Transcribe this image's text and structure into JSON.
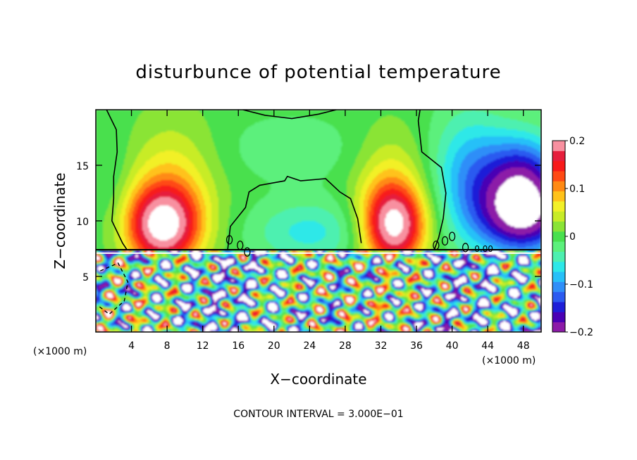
{
  "chart_data": {
    "type": "heatmap",
    "title": "disturbunce of potential temperature",
    "xlabel": "X−coordinate",
    "ylabel": "Z−coordinate",
    "x_unit": "(×1000 m)",
    "xlim": [
      0,
      50
    ],
    "ylim": [
      0,
      20
    ],
    "x_ticks": [
      {
        "value": 4,
        "label": "4"
      },
      {
        "value": 8,
        "label": "8"
      },
      {
        "value": 12,
        "label": "12"
      },
      {
        "value": 16,
        "label": "16"
      },
      {
        "value": 20,
        "label": "20"
      },
      {
        "value": 24,
        "label": "24"
      },
      {
        "value": 28,
        "label": "28"
      },
      {
        "value": 32,
        "label": "32"
      },
      {
        "value": 36,
        "label": "36"
      },
      {
        "value": 40,
        "label": "40"
      },
      {
        "value": 44,
        "label": "44"
      },
      {
        "value": 48,
        "label": "48"
      }
    ],
    "y_ticks": [
      {
        "value": 5,
        "label": "5"
      },
      {
        "value": 10,
        "label": "10"
      },
      {
        "value": 15,
        "label": "15"
      }
    ],
    "colorbar": {
      "range": [
        -0.2,
        0.2
      ],
      "ticks": [
        {
          "value": 0.2,
          "label": "0.2"
        },
        {
          "value": 0.1,
          "label": "0.1"
        },
        {
          "value": 0,
          "label": "0"
        },
        {
          "value": -0.1,
          "label": "−0.1"
        },
        {
          "value": -0.2,
          "label": "−0.2"
        }
      ],
      "colors": [
        "#8c1aa8",
        "#4a00b4",
        "#1e1ed8",
        "#2b5af0",
        "#2f8ef8",
        "#27c0f8",
        "#2de8e8",
        "#4ef0b0",
        "#5cf07c",
        "#49e04e",
        "#8ae436",
        "#c8ec28",
        "#f2f028",
        "#ffc21a",
        "#ff8a14",
        "#ff4a14",
        "#f81a1a",
        "#e61e3c",
        "#f890a0"
      ]
    },
    "blobs": [
      {
        "x": 7.5,
        "z": 9.5,
        "sx": 3.0,
        "sz": 2.6,
        "v": 0.21
      },
      {
        "x": 8.5,
        "z": 13.5,
        "sx": 3.5,
        "sz": 4.0,
        "v": 0.06
      },
      {
        "x": 33.5,
        "z": 9.5,
        "sx": 2.5,
        "sz": 2.6,
        "v": 0.21
      },
      {
        "x": 33.0,
        "z": 13.5,
        "sx": 2.8,
        "sz": 3.5,
        "v": 0.05
      },
      {
        "x": 24.0,
        "z": 9.0,
        "sx": 4.5,
        "sz": 2.0,
        "v": -0.06
      },
      {
        "x": 22.0,
        "z": 16.5,
        "sx": 5.0,
        "sz": 2.0,
        "v": -0.03
      },
      {
        "x": 42.0,
        "z": 14.0,
        "sx": 3.0,
        "sz": 4.0,
        "v": -0.09
      },
      {
        "x": 48.0,
        "z": 10.5,
        "sx": 3.5,
        "sz": 2.5,
        "v": -0.21
      },
      {
        "x": 48.0,
        "z": 14.5,
        "sx": 3.0,
        "sz": 2.5,
        "v": -0.12
      },
      {
        "x": 2.0,
        "z": 13.0,
        "sx": 1.5,
        "sz": 4.0,
        "v": -0.02
      }
    ],
    "contour_interval": "CONTOUR INTERVAL = 3.000E−01",
    "contour_label": "0.00"
  }
}
